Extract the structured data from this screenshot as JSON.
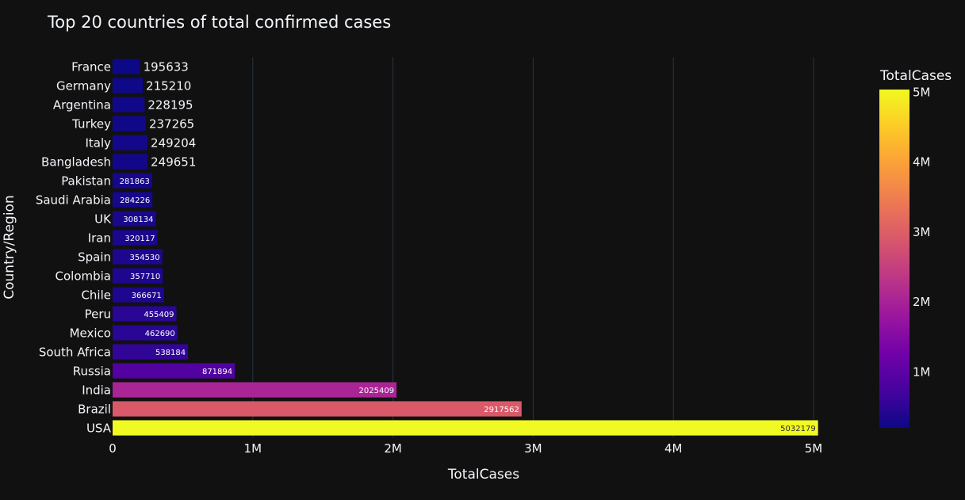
{
  "chart_data": {
    "type": "bar",
    "orientation": "horizontal",
    "title": "Top 20 countries of total confirmed cases",
    "xlabel": "TotalCases",
    "ylabel": "Country/Region",
    "xlim": [
      0,
      5000000
    ],
    "x_ticks": [
      {
        "value": 0,
        "label": "0"
      },
      {
        "value": 1000000,
        "label": "1M"
      },
      {
        "value": 2000000,
        "label": "2M"
      },
      {
        "value": 3000000,
        "label": "3M"
      },
      {
        "value": 4000000,
        "label": "4M"
      },
      {
        "value": 5000000,
        "label": "5M"
      }
    ],
    "categories": [
      "USA",
      "Brazil",
      "India",
      "Russia",
      "South Africa",
      "Mexico",
      "Peru",
      "Chile",
      "Colombia",
      "Spain",
      "Iran",
      "UK",
      "Saudi Arabia",
      "Pakistan",
      "Bangladesh",
      "Italy",
      "Turkey",
      "Argentina",
      "Germany",
      "France"
    ],
    "values": [
      5032179,
      2917562,
      2025409,
      871894,
      538184,
      462690,
      455409,
      366671,
      357710,
      354530,
      320117,
      308134,
      284226,
      281863,
      249651,
      249204,
      237265,
      228195,
      215210,
      195633
    ],
    "data_labels": [
      "5032179",
      "2917562",
      "2025409",
      "871894",
      "538184",
      "462690",
      "455409",
      "366671",
      "357710",
      "354530",
      "320117",
      "308134",
      "284226",
      "281863",
      "249651",
      "249204",
      "237265",
      "228195",
      "215210",
      "195633"
    ],
    "grid": true,
    "colorbar": {
      "title": "TotalCases",
      "range": [
        195633,
        5032179
      ],
      "ticks": [
        {
          "value": 1000000,
          "label": "1M"
        },
        {
          "value": 2000000,
          "label": "2M"
        },
        {
          "value": 3000000,
          "label": "3M"
        },
        {
          "value": 4000000,
          "label": "4M"
        },
        {
          "value": 5000000,
          "label": "5M"
        }
      ],
      "colors": [
        "#0d0887",
        "#46039f",
        "#7201a8",
        "#9c179e",
        "#bd3786",
        "#d8576b",
        "#ed7953",
        "#fb9f3a",
        "#fdca26",
        "#f0f921"
      ]
    },
    "background": "#111111",
    "grid_color": "#283442",
    "text_color": "#f2f5fa"
  }
}
